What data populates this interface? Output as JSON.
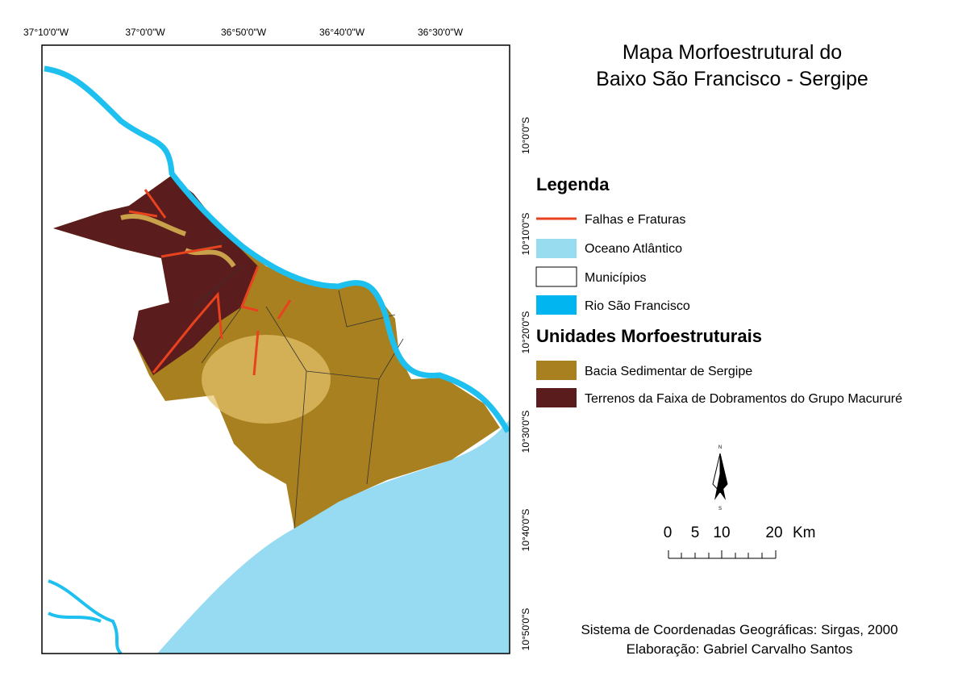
{
  "map": {
    "longitude_labels": [
      "37°10'0\"W",
      "37°0'0\"W",
      "36°50'0\"W",
      "36°40'0\"W",
      "36°30'0\"W"
    ],
    "latitude_labels": [
      "10°0'0\"S",
      "10°10'0\"S",
      "10°20'0\"S",
      "10°30'0\"S",
      "10°40'0\"S",
      "10°50'0\"S"
    ]
  },
  "title": [
    "Mapa Morfoestrutural do",
    "Baixo São Francisco - Sergipe"
  ],
  "legend": {
    "title": "Legenda",
    "items": [
      "Falhas e Fraturas",
      "Oceano Atlântico",
      "Municípios",
      "Rio São Francisco"
    ],
    "units_title": "Unidades Morfoestruturais",
    "units": [
      "Bacia Sedimentar de Sergipe",
      "Terrenos da Faixa de Dobramentos do Grupo Macururé"
    ]
  },
  "north_arrow": {
    "north": "N",
    "south": "S"
  },
  "scale_bar": {
    "labels": [
      "0",
      "5",
      "10",
      "20"
    ],
    "unit": "Km"
  },
  "footer": [
    "Sistema de Coordenadas Geográficas: Sirgas, 2000",
    "Elaboração: Gabriel Carvalho Santos"
  ]
}
